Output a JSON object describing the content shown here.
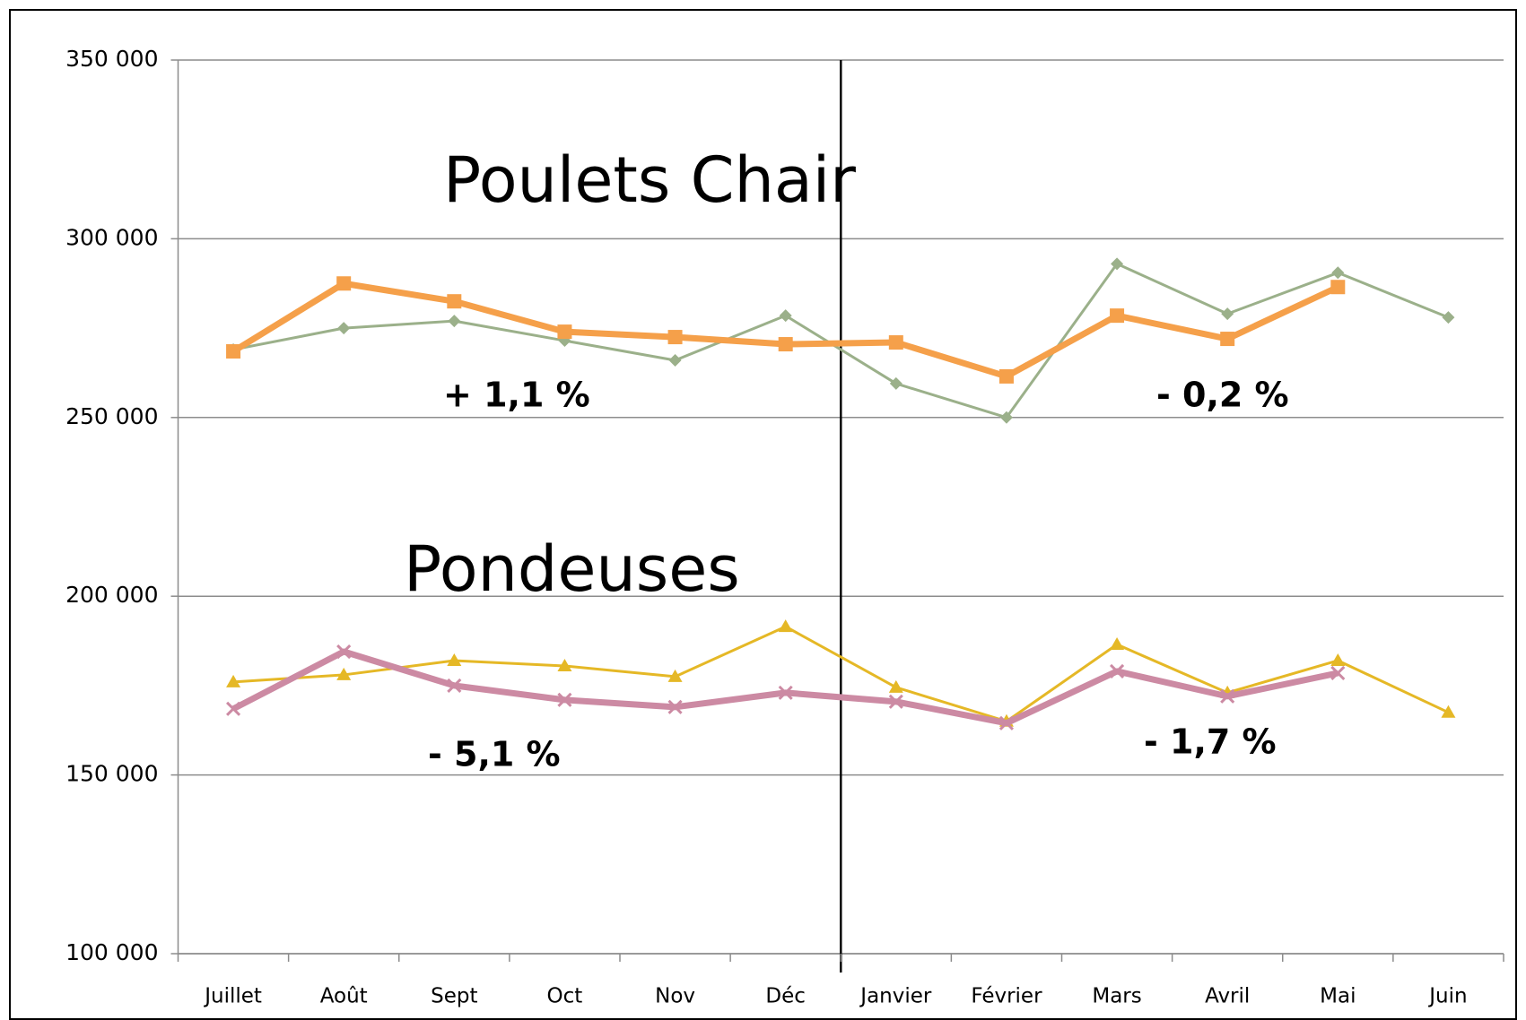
{
  "chart_data": {
    "type": "line",
    "annotations": [
      "Poulets Chair",
      "Pondeuses",
      "+ 1,1 %",
      "- 0,2 %",
      "- 5,1 %",
      "- 1,7 %"
    ],
    "categories": [
      "Juillet",
      "Août",
      "Sept",
      "Oct",
      "Nov",
      "Déc",
      "Janvier",
      "Février",
      "Mars",
      "Avril",
      "Mai",
      "Juin"
    ],
    "series": [
      {
        "color": "#9bb08a",
        "marker": "diamond",
        "line_width": 3,
        "values": [
          269000,
          275000,
          277000,
          271500,
          266000,
          278500,
          259500,
          250000,
          293000,
          279000,
          290500,
          278000
        ]
      },
      {
        "color": "#f5a04a",
        "marker": "square",
        "line_width": 7,
        "values": [
          268500,
          287500,
          282500,
          274000,
          272500,
          270500,
          271000,
          261500,
          278500,
          272000,
          286500,
          null
        ]
      },
      {
        "color": "#e5b826",
        "marker": "triangle",
        "line_width": 3,
        "values": [
          176000,
          178000,
          182000,
          180500,
          177500,
          191500,
          174500,
          165000,
          186500,
          173000,
          182000,
          167500
        ]
      },
      {
        "color": "#cc8aa3",
        "marker": "x",
        "line_width": 7,
        "values": [
          168500,
          184500,
          175000,
          171000,
          169000,
          173000,
          170500,
          164500,
          179000,
          172000,
          178500,
          null
        ]
      }
    ],
    "ylim": [
      100000,
      350000
    ],
    "yticks": [
      {
        "value": 100000,
        "label": "100 000"
      },
      {
        "value": 150000,
        "label": "150 000"
      },
      {
        "value": 200000,
        "label": "200 000"
      },
      {
        "value": 250000,
        "label": "250 000"
      },
      {
        "value": 300000,
        "label": "300 000"
      },
      {
        "value": 350000,
        "label": "350 000"
      }
    ],
    "grid": true
  }
}
